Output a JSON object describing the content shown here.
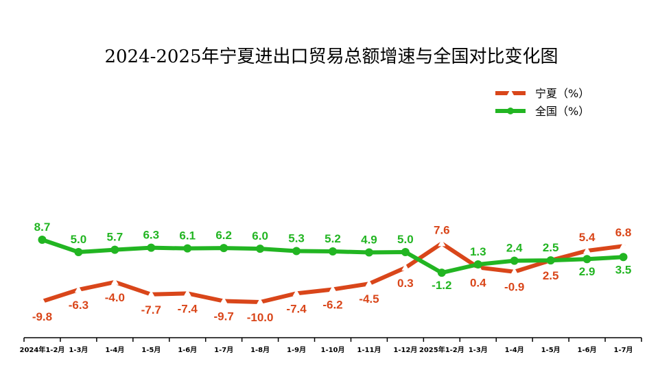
{
  "chart_data": {
    "type": "line",
    "title": "2024-2025年宁夏进出口贸易总额增速与全国对比变化图",
    "categories": [
      "2024年1-2月",
      "1-3月",
      "1-4月",
      "1-5月",
      "1-6月",
      "1-7月",
      "1-8月",
      "1-9月",
      "1-10月",
      "1-11月",
      "1-12月",
      "2025年1-2月",
      "1-3月",
      "1-4月",
      "1-5月",
      "1-6月",
      "1-7月"
    ],
    "series": [
      {
        "name": "宁夏（%）",
        "color": "#d9461a",
        "marker": "triangle",
        "values": [
          -9.8,
          -6.3,
          -4.0,
          -7.7,
          -7.4,
          -9.7,
          -10.0,
          -7.4,
          -6.2,
          -4.5,
          0.3,
          7.6,
          0.4,
          -0.9,
          2.5,
          5.4,
          6.8
        ]
      },
      {
        "name": "全国（%）",
        "color": "#22b522",
        "marker": "circle",
        "values": [
          8.7,
          5.0,
          5.7,
          6.3,
          6.1,
          6.2,
          6.0,
          5.3,
          5.2,
          4.9,
          5.0,
          -1.2,
          1.3,
          2.4,
          2.5,
          2.9,
          3.5
        ]
      }
    ],
    "xlabel": "",
    "ylabel": "",
    "legend": "top-right",
    "grid": false
  }
}
